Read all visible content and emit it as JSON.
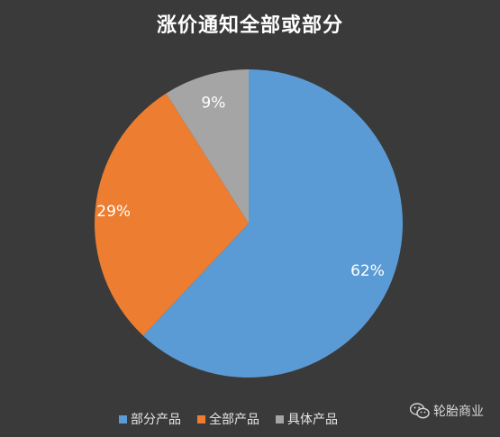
{
  "chart_data": {
    "type": "pie",
    "title": "涨价通知全部或部分",
    "categories": [
      "部分产品",
      "全部产品",
      "具体产品"
    ],
    "values": [
      62,
      29,
      9
    ],
    "labels": [
      "62%",
      "29%",
      "9%"
    ],
    "colors": [
      "#5b9bd5",
      "#ed7d31",
      "#a5a5a5"
    ],
    "legend": "bottom"
  },
  "watermark": {
    "icon": "wechat-icon",
    "text": "轮胎商业"
  },
  "colors": {
    "background": "#3a3a3a",
    "label_text": "#ffffff"
  }
}
